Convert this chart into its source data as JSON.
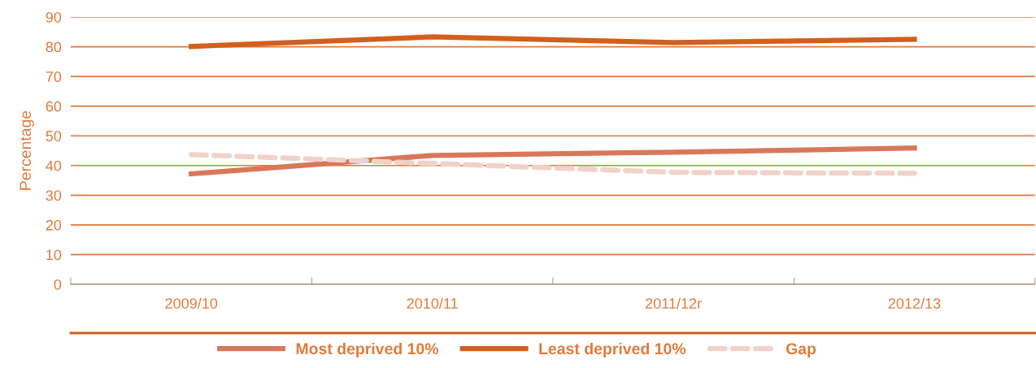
{
  "chart_data": {
    "type": "line",
    "ylabel": "Percentage",
    "categories": [
      "2009/10",
      "2010/11",
      "2011/12r",
      "2012/13"
    ],
    "series": [
      {
        "name": "Most deprived 10%",
        "color": "#d9775a",
        "values": [
          37.2,
          43.4,
          44.5,
          45.9
        ]
      },
      {
        "name": "Least deprived 10%",
        "color": "#d45f1b",
        "values": [
          80.1,
          83.3,
          81.4,
          82.5
        ]
      },
      {
        "name": "Gap",
        "color": "#f0d2ca",
        "values": [
          43.7,
          40.7,
          37.7,
          37.4
        ],
        "line_style": "dashed"
      }
    ],
    "ylim": [
      0,
      90
    ],
    "yticks": [
      0,
      10,
      20,
      30,
      40,
      50,
      60,
      70,
      80,
      90
    ],
    "grid": "y",
    "legend": "bottom",
    "marker": "none",
    "line_style": "solid"
  }
}
